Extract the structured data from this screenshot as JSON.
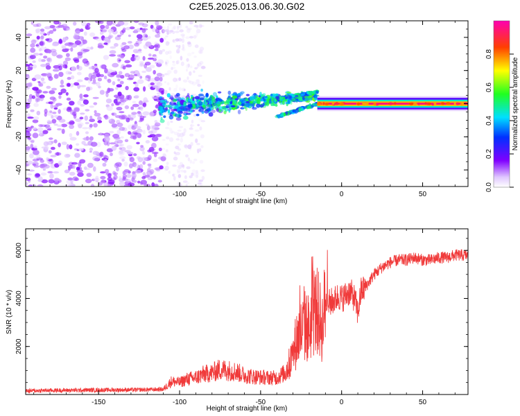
{
  "title": "C2E5.2025.013.06.30.G02",
  "chart_data": [
    {
      "type": "heatmap",
      "xlabel": "Height of straight line (km)",
      "ylabel": "Frequency (Hz)",
      "xlim": [
        -195,
        78
      ],
      "ylim": [
        -50,
        50
      ],
      "xticks": [
        -150,
        -100,
        -50,
        0,
        50
      ],
      "yticks": [
        -40,
        -20,
        0,
        20,
        40
      ],
      "colorbar": {
        "label": "Normalized spectral amplitude",
        "range": [
          0,
          1
        ],
        "ticks": [
          0.0,
          0.2,
          0.4,
          0.6,
          0.8
        ],
        "colormap": "rainbow (white-violet-blue-cyan-green-yellow-red-magenta)"
      },
      "features": [
        {
          "name": "diffuse noise",
          "x_range": [
            -195,
            -110
          ],
          "freq_range": [
            -50,
            50
          ],
          "amplitude": 0.1
        },
        {
          "name": "sparse noise",
          "x_range": [
            -110,
            -85
          ],
          "freq_range": [
            -50,
            50
          ],
          "amplitude": 0.05
        },
        {
          "name": "converging band",
          "x_range": [
            -112,
            -15
          ],
          "freq_range": [
            -10,
            12
          ],
          "amplitude": 0.3
        },
        {
          "name": "forking branches",
          "x_range": [
            -40,
            -15
          ],
          "freq_range": [
            -8,
            8
          ],
          "amplitude": 0.4
        },
        {
          "name": "direct signal",
          "x_range": [
            -15,
            78
          ],
          "freq_range": [
            -2,
            2
          ],
          "amplitude": 0.9
        }
      ]
    },
    {
      "type": "line",
      "xlabel": "Height of straight line (km)",
      "ylabel": "SNR (10 * v/v)",
      "xlim": [
        -195,
        78
      ],
      "ylim": [
        0,
        6900
      ],
      "xticks": [
        -150,
        -100,
        -50,
        0,
        50
      ],
      "yticks": [
        2000,
        4000,
        6000
      ],
      "color": "#f03a3a",
      "series": [
        {
          "x": [
            -195,
            -180,
            -160,
            -140,
            -120,
            -110,
            -105,
            -100,
            -95,
            -90,
            -85,
            -80,
            -75,
            -70,
            -65,
            -60,
            -55,
            -50,
            -45,
            -40,
            -35,
            -30,
            -28,
            -25,
            -22,
            -20,
            -18,
            -15,
            -12,
            -10,
            -8,
            -5,
            -2,
            0,
            2,
            5,
            8,
            10,
            12,
            15,
            20,
            25,
            30,
            35,
            40,
            45,
            50,
            55,
            60,
            65,
            70,
            78
          ],
          "y": [
            150,
            170,
            180,
            190,
            200,
            220,
            550,
            500,
            650,
            700,
            850,
            900,
            1050,
            1000,
            950,
            800,
            750,
            720,
            700,
            700,
            900,
            1600,
            2300,
            2600,
            2900,
            2700,
            3300,
            3500,
            2800,
            3900,
            3800,
            3900,
            4100,
            4000,
            4100,
            4300,
            4000,
            3400,
            4300,
            4500,
            5000,
            5300,
            5500,
            5600,
            5600,
            5700,
            5600,
            5600,
            5700,
            5700,
            5800,
            5800
          ]
        }
      ]
    }
  ]
}
